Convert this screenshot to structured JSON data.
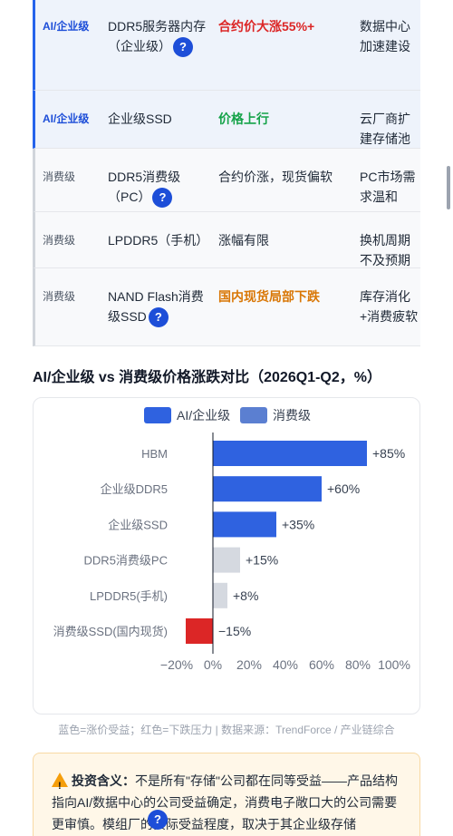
{
  "table": {
    "rows": [
      {
        "category": "AI/企业级",
        "group": "ai",
        "product": "DDR5服务器内存（企业级）",
        "help": "?",
        "trend": "合约价大涨55%+",
        "trend_style": "red",
        "impact": "数据中心加速建设"
      },
      {
        "category": "AI/企业级",
        "group": "ai",
        "product": "企业级SSD",
        "help": "",
        "trend": "价格上行",
        "trend_style": "green",
        "impact": "云厂商扩建存储池"
      },
      {
        "category": "消费级",
        "group": "consumer",
        "product": "DDR5消费级（PC）",
        "help": "?",
        "trend": "合约价涨，现货偏软",
        "trend_style": "neutral",
        "impact": "PC市场需求温和"
      },
      {
        "category": "消费级",
        "group": "consumer",
        "product": "LPDDR5（手机）",
        "help": "",
        "trend": "涨幅有限",
        "trend_style": "neutral",
        "impact": "换机周期不及预期"
      },
      {
        "category": "消费级",
        "group": "consumer",
        "product": "NAND Flash消费级SSD",
        "help": "?",
        "trend": "国内现货局部下跌",
        "trend_style": "orange",
        "impact": "库存消化+消费疲软"
      }
    ]
  },
  "section_title": "AI/企业级 vs 消费级价格涨跌对比（2026Q1-Q2，%）",
  "chart_data": {
    "type": "bar",
    "orientation": "horizontal",
    "title": "",
    "legend": [
      {
        "name": "AI/企业级",
        "color": "#2f62e0"
      },
      {
        "name": "消费级",
        "color": "#5b7fd1"
      }
    ],
    "legend_position": "top-center",
    "categories": [
      "HBM",
      "企业级DDR5",
      "企业级SSD",
      "DDR5消费级PC",
      "LPDDR5(手机)",
      "消费级SSD(国内现货)"
    ],
    "values": [
      85,
      60,
      35,
      15,
      8,
      -15
    ],
    "value_labels": [
      "+85%",
      "+60%",
      "+35%",
      "+15%",
      "+8%",
      "−15%"
    ],
    "bar_colors": [
      "#2f62e0",
      "#2f62e0",
      "#2f62e0",
      "#d5d9e0",
      "#d5d9e0",
      "#dc2626"
    ],
    "xlim": [
      -20,
      100
    ],
    "xticks": [
      -20,
      0,
      20,
      40,
      60,
      80,
      100
    ],
    "xtick_labels": [
      "−20%",
      "0%",
      "20%",
      "40%",
      "60%",
      "80%",
      "100%"
    ],
    "grid": false
  },
  "source_note": "蓝色=涨价受益；红色=下跌压力 | 数据来源：TrendForce / 产业链综合",
  "callout": {
    "icon": "warning-icon",
    "heading": "投资含义：",
    "text": "不是所有\"存储\"公司都在同等受益——产品结构指向AI/数据中心的公司受益确定，消费电子敞口大的公司需要更审慎。模组厂的实际受益程度，取决于其企业级存储"
  },
  "colors": {
    "accent": "#2563eb",
    "up": "#16a34a",
    "down": "#dc2626",
    "warn": "#d97706"
  }
}
